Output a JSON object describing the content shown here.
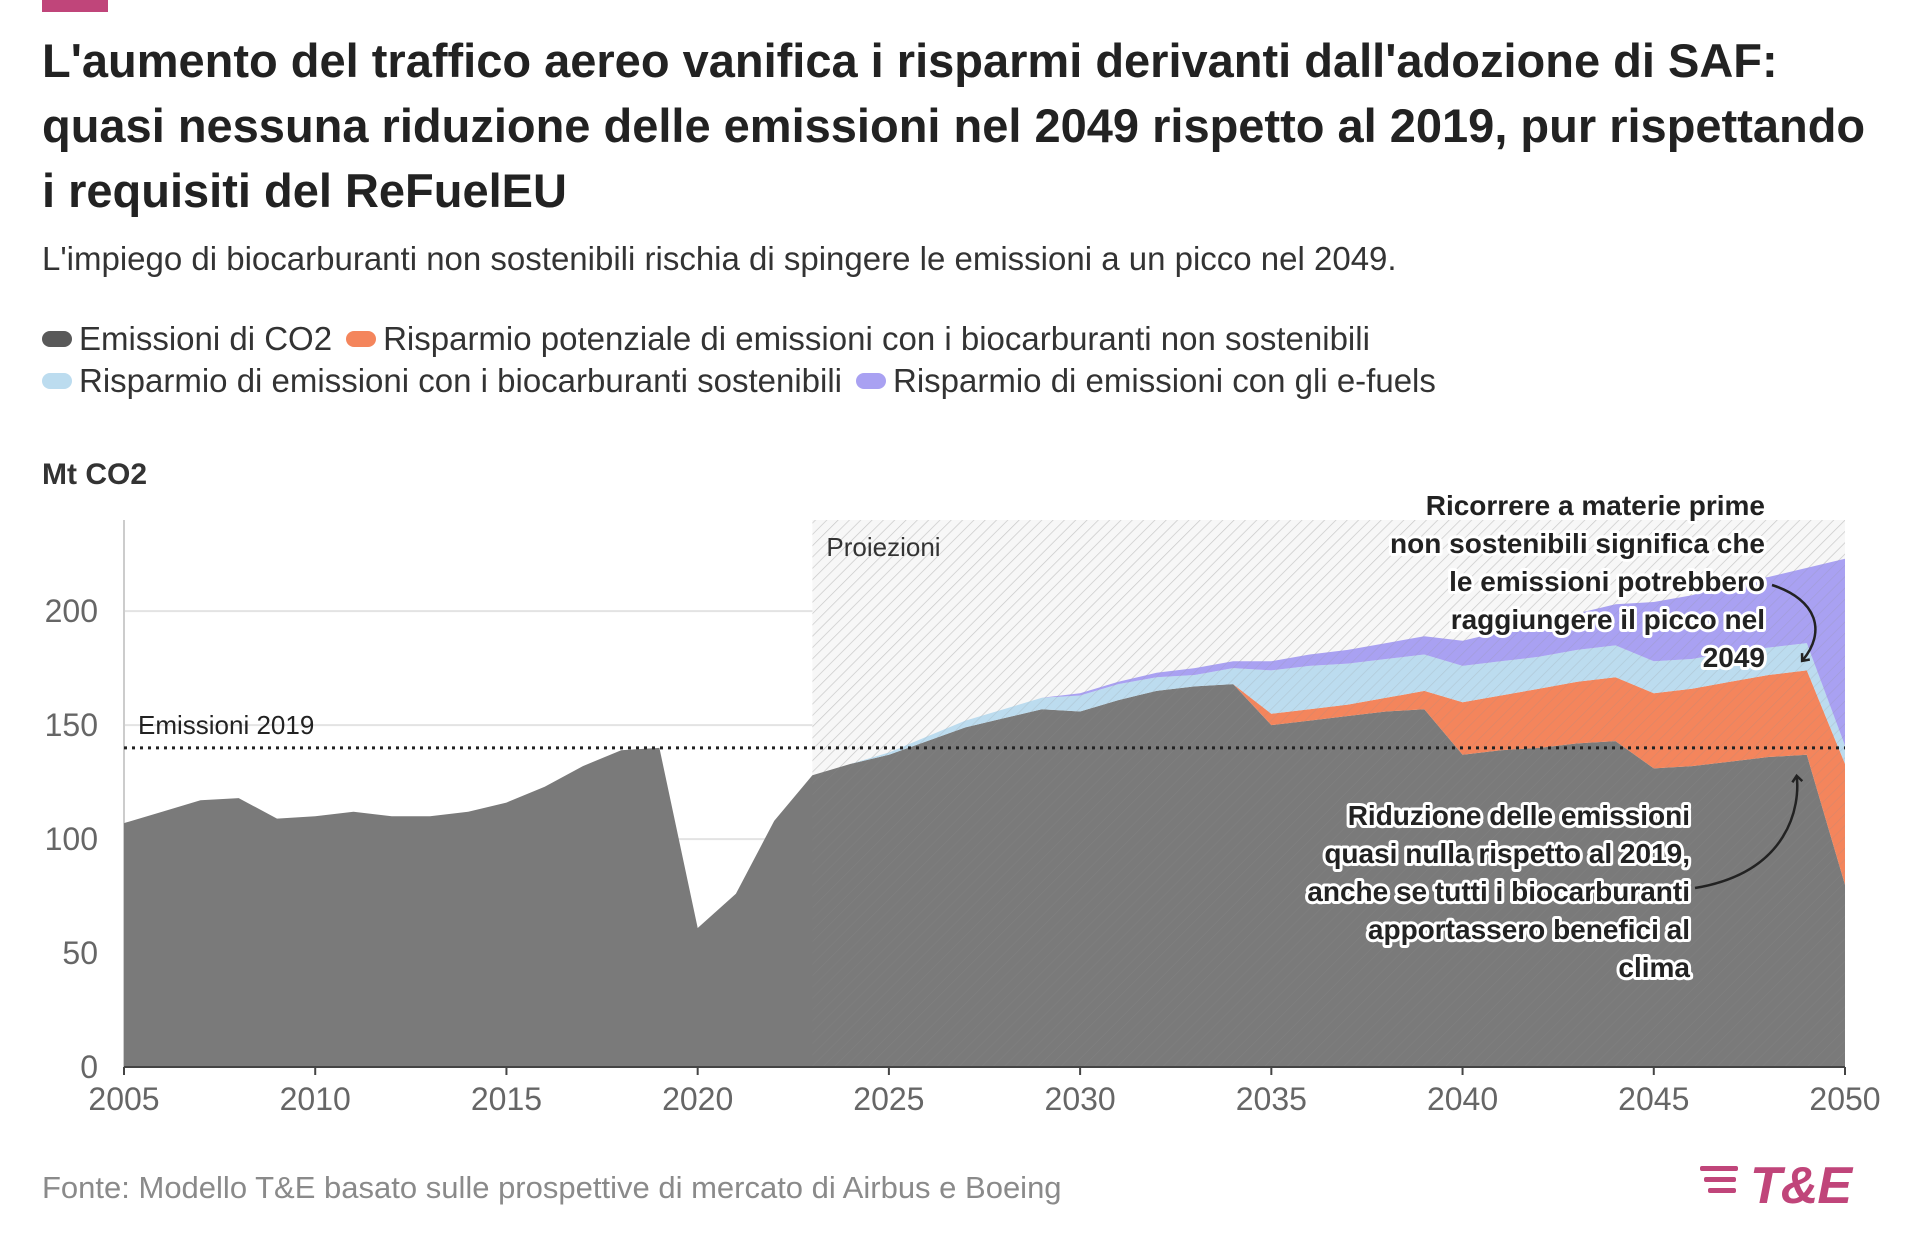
{
  "header": {
    "title": "L'aumento del traffico aereo vanifica i risparmi derivanti dall'adozione di SAF: quasi nessuna riduzione delle emissioni nel 2049 rispetto al 2019, pur rispettando i requisiti del ReFuelEU",
    "subtitle": "L'impiego di biocarburanti non sostenibili rischia di spingere le emissioni a un picco nel 2049."
  },
  "colors": {
    "accent": "#c0457a",
    "emissions": "#7a7a7a",
    "unsustainable_bio": "#f4855c",
    "sustainable_bio": "#bcdcef",
    "efuels": "#a9a1f2"
  },
  "legend": [
    {
      "label": "Emissioni di CO2",
      "color": "#595959"
    },
    {
      "label": "Risparmio potenziale di emissioni con i biocarburanti non sostenibili",
      "color": "#f4855c"
    },
    {
      "label": "Risparmio di emissioni con i biocarburanti sostenibili",
      "color": "#bcdcef"
    },
    {
      "label": "Risparmio di emissioni con gli e-fuels",
      "color": "#a9a1f2"
    }
  ],
  "footer": {
    "source": "Fonte: Modello T&E basato sulle prospettive di mercato di Airbus e Boeing",
    "logo_text": "T&E"
  },
  "chart_data": {
    "type": "area",
    "ylabel": "Mt CO2",
    "xlim": [
      2005,
      2050
    ],
    "ylim": [
      0,
      240
    ],
    "x_ticks": [
      2005,
      2010,
      2015,
      2020,
      2025,
      2030,
      2035,
      2040,
      2045,
      2050
    ],
    "y_ticks": [
      0,
      50,
      100,
      150,
      200
    ],
    "grid": true,
    "stacked": true,
    "projection": {
      "start": 2023,
      "end": 2050,
      "label": "Proiezioni"
    },
    "reference_line": {
      "value": 140,
      "label": "Emissioni 2019"
    },
    "x": [
      2005,
      2006,
      2007,
      2008,
      2009,
      2010,
      2011,
      2012,
      2013,
      2014,
      2015,
      2016,
      2017,
      2018,
      2019,
      2020,
      2021,
      2022,
      2023,
      2024,
      2025,
      2026,
      2027,
      2028,
      2029,
      2030,
      2031,
      2032,
      2033,
      2034,
      2035,
      2036,
      2037,
      2038,
      2039,
      2040,
      2041,
      2042,
      2043,
      2044,
      2045,
      2046,
      2047,
      2048,
      2049,
      2050
    ],
    "series": [
      {
        "name": "Emissioni di CO2",
        "values": [
          107,
          112,
          117,
          118,
          109,
          110,
          112,
          110,
          110,
          112,
          116,
          123,
          132,
          139,
          140,
          61,
          76,
          108,
          128,
          133,
          137,
          143,
          149,
          153,
          157,
          156,
          161,
          165,
          167,
          168,
          150,
          152,
          154,
          156,
          157,
          137,
          139,
          140,
          142,
          143,
          131,
          132,
          134,
          136,
          137,
          80
        ]
      },
      {
        "name": "Risparmio potenziale di emissioni con i biocarburanti non sostenibili",
        "values": [
          0,
          0,
          0,
          0,
          0,
          0,
          0,
          0,
          0,
          0,
          0,
          0,
          0,
          0,
          0,
          0,
          0,
          0,
          0,
          0,
          0,
          0,
          0,
          0,
          0,
          0,
          0,
          0,
          0,
          0,
          5,
          5,
          5,
          6,
          8,
          23,
          24,
          26,
          27,
          28,
          33,
          34,
          35,
          36,
          37,
          53
        ]
      },
      {
        "name": "Risparmio di emissioni con i biocarburanti sostenibili",
        "values": [
          0,
          0,
          0,
          0,
          0,
          0,
          0,
          0,
          0,
          0,
          0,
          0,
          0,
          0,
          0,
          0,
          0,
          0,
          0,
          0,
          1,
          2,
          3,
          4,
          5,
          7,
          7,
          6,
          5,
          7,
          19,
          19,
          18,
          17,
          16,
          16,
          15,
          14,
          14,
          14,
          14,
          13,
          13,
          12,
          12,
          8
        ]
      },
      {
        "name": "Risparmio di emissioni con gli e-fuels",
        "values": [
          0,
          0,
          0,
          0,
          0,
          0,
          0,
          0,
          0,
          0,
          0,
          0,
          0,
          0,
          0,
          0,
          0,
          0,
          0,
          0,
          0,
          0,
          0,
          0,
          0,
          1,
          1,
          2,
          3,
          3,
          4,
          5,
          6,
          7,
          8,
          11,
          13,
          15,
          16,
          18,
          26,
          28,
          30,
          31,
          33,
          82
        ]
      }
    ],
    "annotations": [
      {
        "text": "Ricorrere a materie prime non sostenibili significa che le emissioni potrebbero raggiungere il picco nel 2049",
        "lines": [
          "Ricorrere a materie prime",
          "non sostenibili significa che",
          "le emissioni potrebbero",
          "raggiungere il picco nel",
          "2049"
        ],
        "points_to": {
          "x": 2049,
          "y": 175
        }
      },
      {
        "text": "Riduzione delle emissioni quasi nulla rispetto al 2019, anche se tutti i biocarburanti apportassero benefici al clima",
        "lines": [
          "Riduzione delle emissioni",
          "quasi nulla rispetto al 2019,",
          "anche se tutti i biocarburanti",
          "apportassero benefici al",
          "clima"
        ],
        "points_to": {
          "x": 2049,
          "y": 137
        }
      }
    ]
  }
}
